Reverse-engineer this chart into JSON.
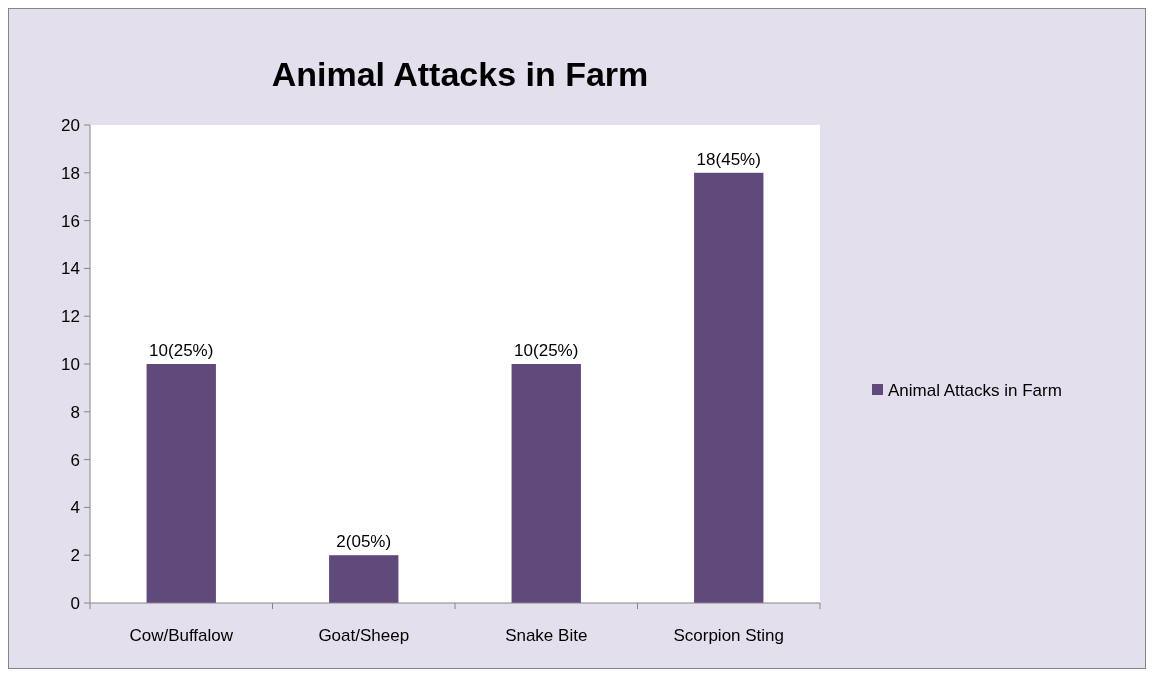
{
  "chart_data": {
    "type": "bar",
    "title": "Animal Attacks in Farm",
    "categories": [
      "Cow/Buffalow",
      "Goat/Sheep",
      "Snake Bite",
      "Scorpion Sting"
    ],
    "series": [
      {
        "name": "Animal Attacks in Farm",
        "color": "#604a7b",
        "values": [
          10,
          2,
          10,
          18
        ],
        "value_labels": [
          "10(25%)",
          "2(05%)",
          "10(25%)",
          "18(45%)"
        ]
      }
    ],
    "ylim": [
      0,
      20
    ],
    "yticks": [
      0,
      2,
      4,
      6,
      8,
      10,
      12,
      14,
      16,
      18,
      20
    ],
    "grid": false,
    "legend": "right"
  }
}
